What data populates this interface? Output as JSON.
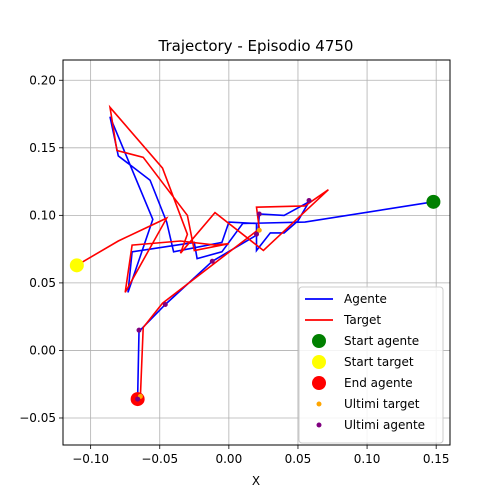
{
  "chart_data": {
    "type": "line",
    "title": "Trajectory - Episodio 4750",
    "xlabel": "X",
    "ylabel": "",
    "xlim": [
      -0.12,
      0.16
    ],
    "ylim": [
      -0.07,
      0.215
    ],
    "xticks": [
      -0.1,
      -0.05,
      0.0,
      0.05,
      0.1,
      0.15
    ],
    "xtick_labels": [
      "−0.10",
      "−0.05",
      "0.00",
      "0.05",
      "0.10",
      "0.15"
    ],
    "yticks": [
      -0.05,
      0.0,
      0.05,
      0.1,
      0.15,
      0.2
    ],
    "ytick_labels": [
      "−0.05",
      "0.00",
      "0.05",
      "0.10",
      "0.15",
      "0.20"
    ],
    "grid": true,
    "legend_position": "lower-right",
    "series": [
      {
        "name": "Agente",
        "kind": "line",
        "color": "#0000ff",
        "points": [
          [
            0.148,
            0.11
          ],
          [
            0.055,
            0.095
          ],
          [
            0.01,
            0.094
          ],
          [
            -0.005,
            0.073
          ],
          [
            -0.023,
            0.068
          ],
          [
            -0.025,
            0.08
          ],
          [
            -0.07,
            0.073
          ],
          [
            -0.073,
            0.043
          ],
          [
            -0.055,
            0.097
          ],
          [
            -0.086,
            0.173
          ],
          [
            -0.08,
            0.144
          ],
          [
            -0.057,
            0.126
          ],
          [
            -0.045,
            0.095
          ],
          [
            -0.04,
            0.073
          ],
          [
            -0.005,
            0.08
          ],
          [
            0.0,
            0.095
          ],
          [
            0.02,
            0.094
          ],
          [
            0.02,
            0.074
          ],
          [
            0.03,
            0.087
          ],
          [
            0.04,
            0.087
          ],
          [
            0.05,
            0.096
          ],
          [
            0.058,
            0.11
          ],
          [
            0.04,
            0.1
          ],
          [
            0.022,
            0.101
          ],
          [
            0.021,
            0.086
          ],
          [
            -0.012,
            0.066
          ],
          [
            -0.046,
            0.034
          ],
          [
            -0.065,
            0.014
          ],
          [
            -0.066,
            -0.036
          ]
        ]
      },
      {
        "name": "Target",
        "kind": "line",
        "color": "#ff0000",
        "points": [
          [
            -0.11,
            0.063
          ],
          [
            -0.08,
            0.081
          ],
          [
            -0.045,
            0.098
          ],
          [
            -0.075,
            0.043
          ],
          [
            -0.07,
            0.078
          ],
          [
            -0.035,
            0.081
          ],
          [
            -0.01,
            0.078
          ],
          [
            0.0,
            0.079
          ],
          [
            -0.025,
            0.074
          ],
          [
            -0.03,
            0.1
          ],
          [
            -0.062,
            0.143
          ],
          [
            -0.081,
            0.148
          ],
          [
            -0.086,
            0.18
          ],
          [
            -0.048,
            0.135
          ],
          [
            -0.03,
            0.086
          ],
          [
            -0.035,
            0.072
          ],
          [
            -0.01,
            0.102
          ],
          [
            0.025,
            0.074
          ],
          [
            0.05,
            0.098
          ],
          [
            0.072,
            0.119
          ],
          [
            0.055,
            0.107
          ],
          [
            0.02,
            0.106
          ],
          [
            0.022,
            0.09
          ],
          [
            -0.048,
            0.035
          ],
          [
            -0.062,
            0.017
          ],
          [
            -0.064,
            -0.034
          ],
          [
            -0.066,
            -0.036
          ]
        ]
      },
      {
        "name": "Start agente",
        "kind": "marker",
        "color": "#008000",
        "size": 7,
        "points": [
          [
            0.148,
            0.11
          ]
        ]
      },
      {
        "name": "Start target",
        "kind": "marker",
        "color": "#ffff00",
        "size": 7,
        "points": [
          [
            -0.11,
            0.063
          ]
        ]
      },
      {
        "name": "End agente",
        "kind": "marker",
        "color": "#ff0000",
        "size": 7,
        "points": [
          [
            -0.066,
            -0.036
          ]
        ]
      },
      {
        "name": "Ultimi target",
        "kind": "marker",
        "color": "#ffa500",
        "size": 2.5,
        "points": [
          [
            0.022,
            0.089
          ],
          [
            -0.064,
            -0.034
          ]
        ]
      },
      {
        "name": "Ultimi agente",
        "kind": "marker",
        "color": "#800080",
        "size": 2.5,
        "points": [
          [
            0.058,
            0.111
          ],
          [
            0.022,
            0.101
          ],
          [
            0.02,
            0.086
          ],
          [
            -0.012,
            0.066
          ],
          [
            -0.046,
            0.034
          ],
          [
            -0.065,
            0.015
          ],
          [
            -0.066,
            -0.036
          ]
        ]
      }
    ]
  }
}
